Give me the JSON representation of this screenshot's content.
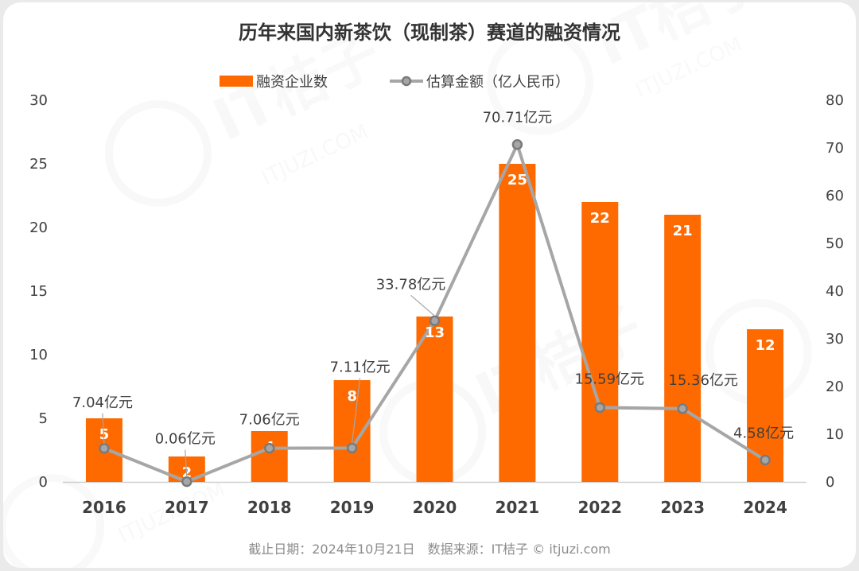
{
  "chart_data": {
    "type": "bar",
    "title": "历年来国内新茶饮（现制茶）赛道的融资情况",
    "categories": [
      "2016",
      "2017",
      "2018",
      "2019",
      "2020",
      "2021",
      "2022",
      "2023",
      "2024"
    ],
    "series": [
      {
        "name": "融资企业数",
        "type": "bar",
        "axis": "left",
        "values": [
          5,
          2,
          4,
          8,
          13,
          25,
          22,
          21,
          12
        ],
        "color": "#ff6a00",
        "labels": [
          "5",
          "2",
          "4",
          "8",
          "13",
          "25",
          "22",
          "21",
          "12"
        ]
      },
      {
        "name": "估算金额（亿人民币）",
        "type": "line",
        "axis": "right",
        "values": [
          7.04,
          0.06,
          7.06,
          7.11,
          33.78,
          70.71,
          15.59,
          15.36,
          4.58
        ],
        "color": "#a6a6a6",
        "labels": [
          "7.04亿元",
          "0.06亿元",
          "7.06亿元",
          "7.11亿元",
          "33.78亿元",
          "70.71亿元",
          "15.59亿元",
          "15.36亿元",
          "4.58亿元"
        ]
      }
    ],
    "y_left": {
      "range": [
        0,
        30
      ],
      "ticks": [
        "0",
        "5",
        "10",
        "15",
        "20",
        "25",
        "30"
      ]
    },
    "y_right": {
      "range": [
        0,
        80
      ],
      "ticks": [
        "0",
        "10",
        "20",
        "30",
        "40",
        "50",
        "60",
        "70",
        "80"
      ]
    },
    "legend_position": "top-center",
    "grid": false
  },
  "footer": "截止日期：2024年10月21日　数据来源：IT桔子 © itjuzi.com",
  "watermark": {
    "logo_text": "IT桔子",
    "site_text": "ITJUZI.COM"
  },
  "colors": {
    "bar": "#ff6a00",
    "line": "#a6a6a6",
    "marker_stroke": "#7a7a7a",
    "text": "#404040"
  }
}
